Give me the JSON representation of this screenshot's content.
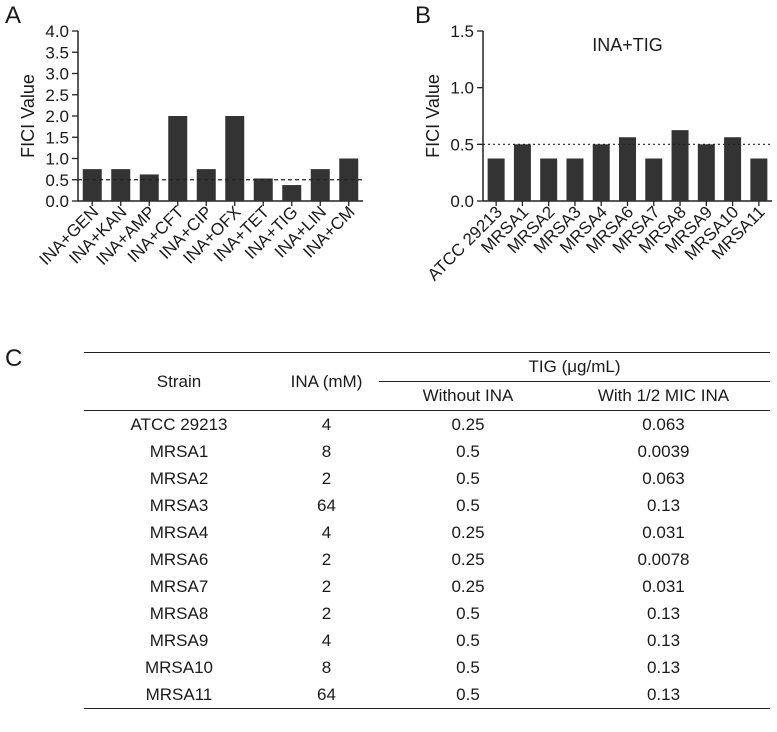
{
  "panels": {
    "a": "A",
    "b": "B",
    "c": "C"
  },
  "chart_data": [
    {
      "type": "bar",
      "panel": "A",
      "title": "",
      "xlabel": "",
      "ylabel": "FICI Value",
      "ylim": [
        0,
        4.0
      ],
      "yticks": [
        "0.0",
        "0.5",
        "1.0",
        "1.5",
        "2.0",
        "2.5",
        "3.0",
        "3.5",
        "4.0"
      ],
      "categories": [
        "INA+GEN",
        "INA+KAN",
        "INA+AMP",
        "INA+CFT",
        "INA+CIP",
        "INA+OFX",
        "INA+TET",
        "INA+TIG",
        "INA+LIN",
        "INA+CM"
      ],
      "values": [
        0.75,
        0.75,
        0.625,
        2.0,
        0.75,
        2.0,
        0.53,
        0.375,
        0.75,
        1.0
      ],
      "reference_line": 0.5,
      "bar_color": "#333333"
    },
    {
      "type": "bar",
      "panel": "B",
      "title": "INA+TIG",
      "xlabel": "",
      "ylabel": "FICI Value",
      "ylim": [
        0,
        1.5
      ],
      "yticks": [
        "0.0",
        "0.5",
        "1.0",
        "1.5"
      ],
      "categories": [
        "ATCC 29213",
        "MRSA1",
        "MRSA2",
        "MRSA3",
        "MRSA4",
        "MRSA6",
        "MRSA7",
        "MRSA8",
        "MRSA9",
        "MRSA10",
        "MRSA11"
      ],
      "values": [
        0.375,
        0.5,
        0.375,
        0.375,
        0.5,
        0.5625,
        0.375,
        0.625,
        0.5,
        0.5625,
        0.375
      ],
      "reference_line": 0.5,
      "bar_color": "#333333"
    }
  ],
  "table": {
    "header_strain": "Strain",
    "header_ina": "INA (mM)",
    "header_tig": "TIG (μg/mL)",
    "header_without": "Without INA",
    "header_with": "With 1/2 MIC INA",
    "rows": [
      [
        "ATCC 29213",
        "4",
        "0.25",
        "0.063"
      ],
      [
        "MRSA1",
        "8",
        "0.5",
        "0.0039"
      ],
      [
        "MRSA2",
        "2",
        "0.5",
        "0.063"
      ],
      [
        "MRSA3",
        "64",
        "0.5",
        "0.13"
      ],
      [
        "MRSA4",
        "4",
        "0.25",
        "0.031"
      ],
      [
        "MRSA6",
        "2",
        "0.25",
        "0.0078"
      ],
      [
        "MRSA7",
        "2",
        "0.25",
        "0.031"
      ],
      [
        "MRSA8",
        "2",
        "0.5",
        "0.13"
      ],
      [
        "MRSA9",
        "4",
        "0.5",
        "0.13"
      ],
      [
        "MRSA10",
        "8",
        "0.5",
        "0.13"
      ],
      [
        "MRSA11",
        "64",
        "0.5",
        "0.13"
      ]
    ]
  }
}
